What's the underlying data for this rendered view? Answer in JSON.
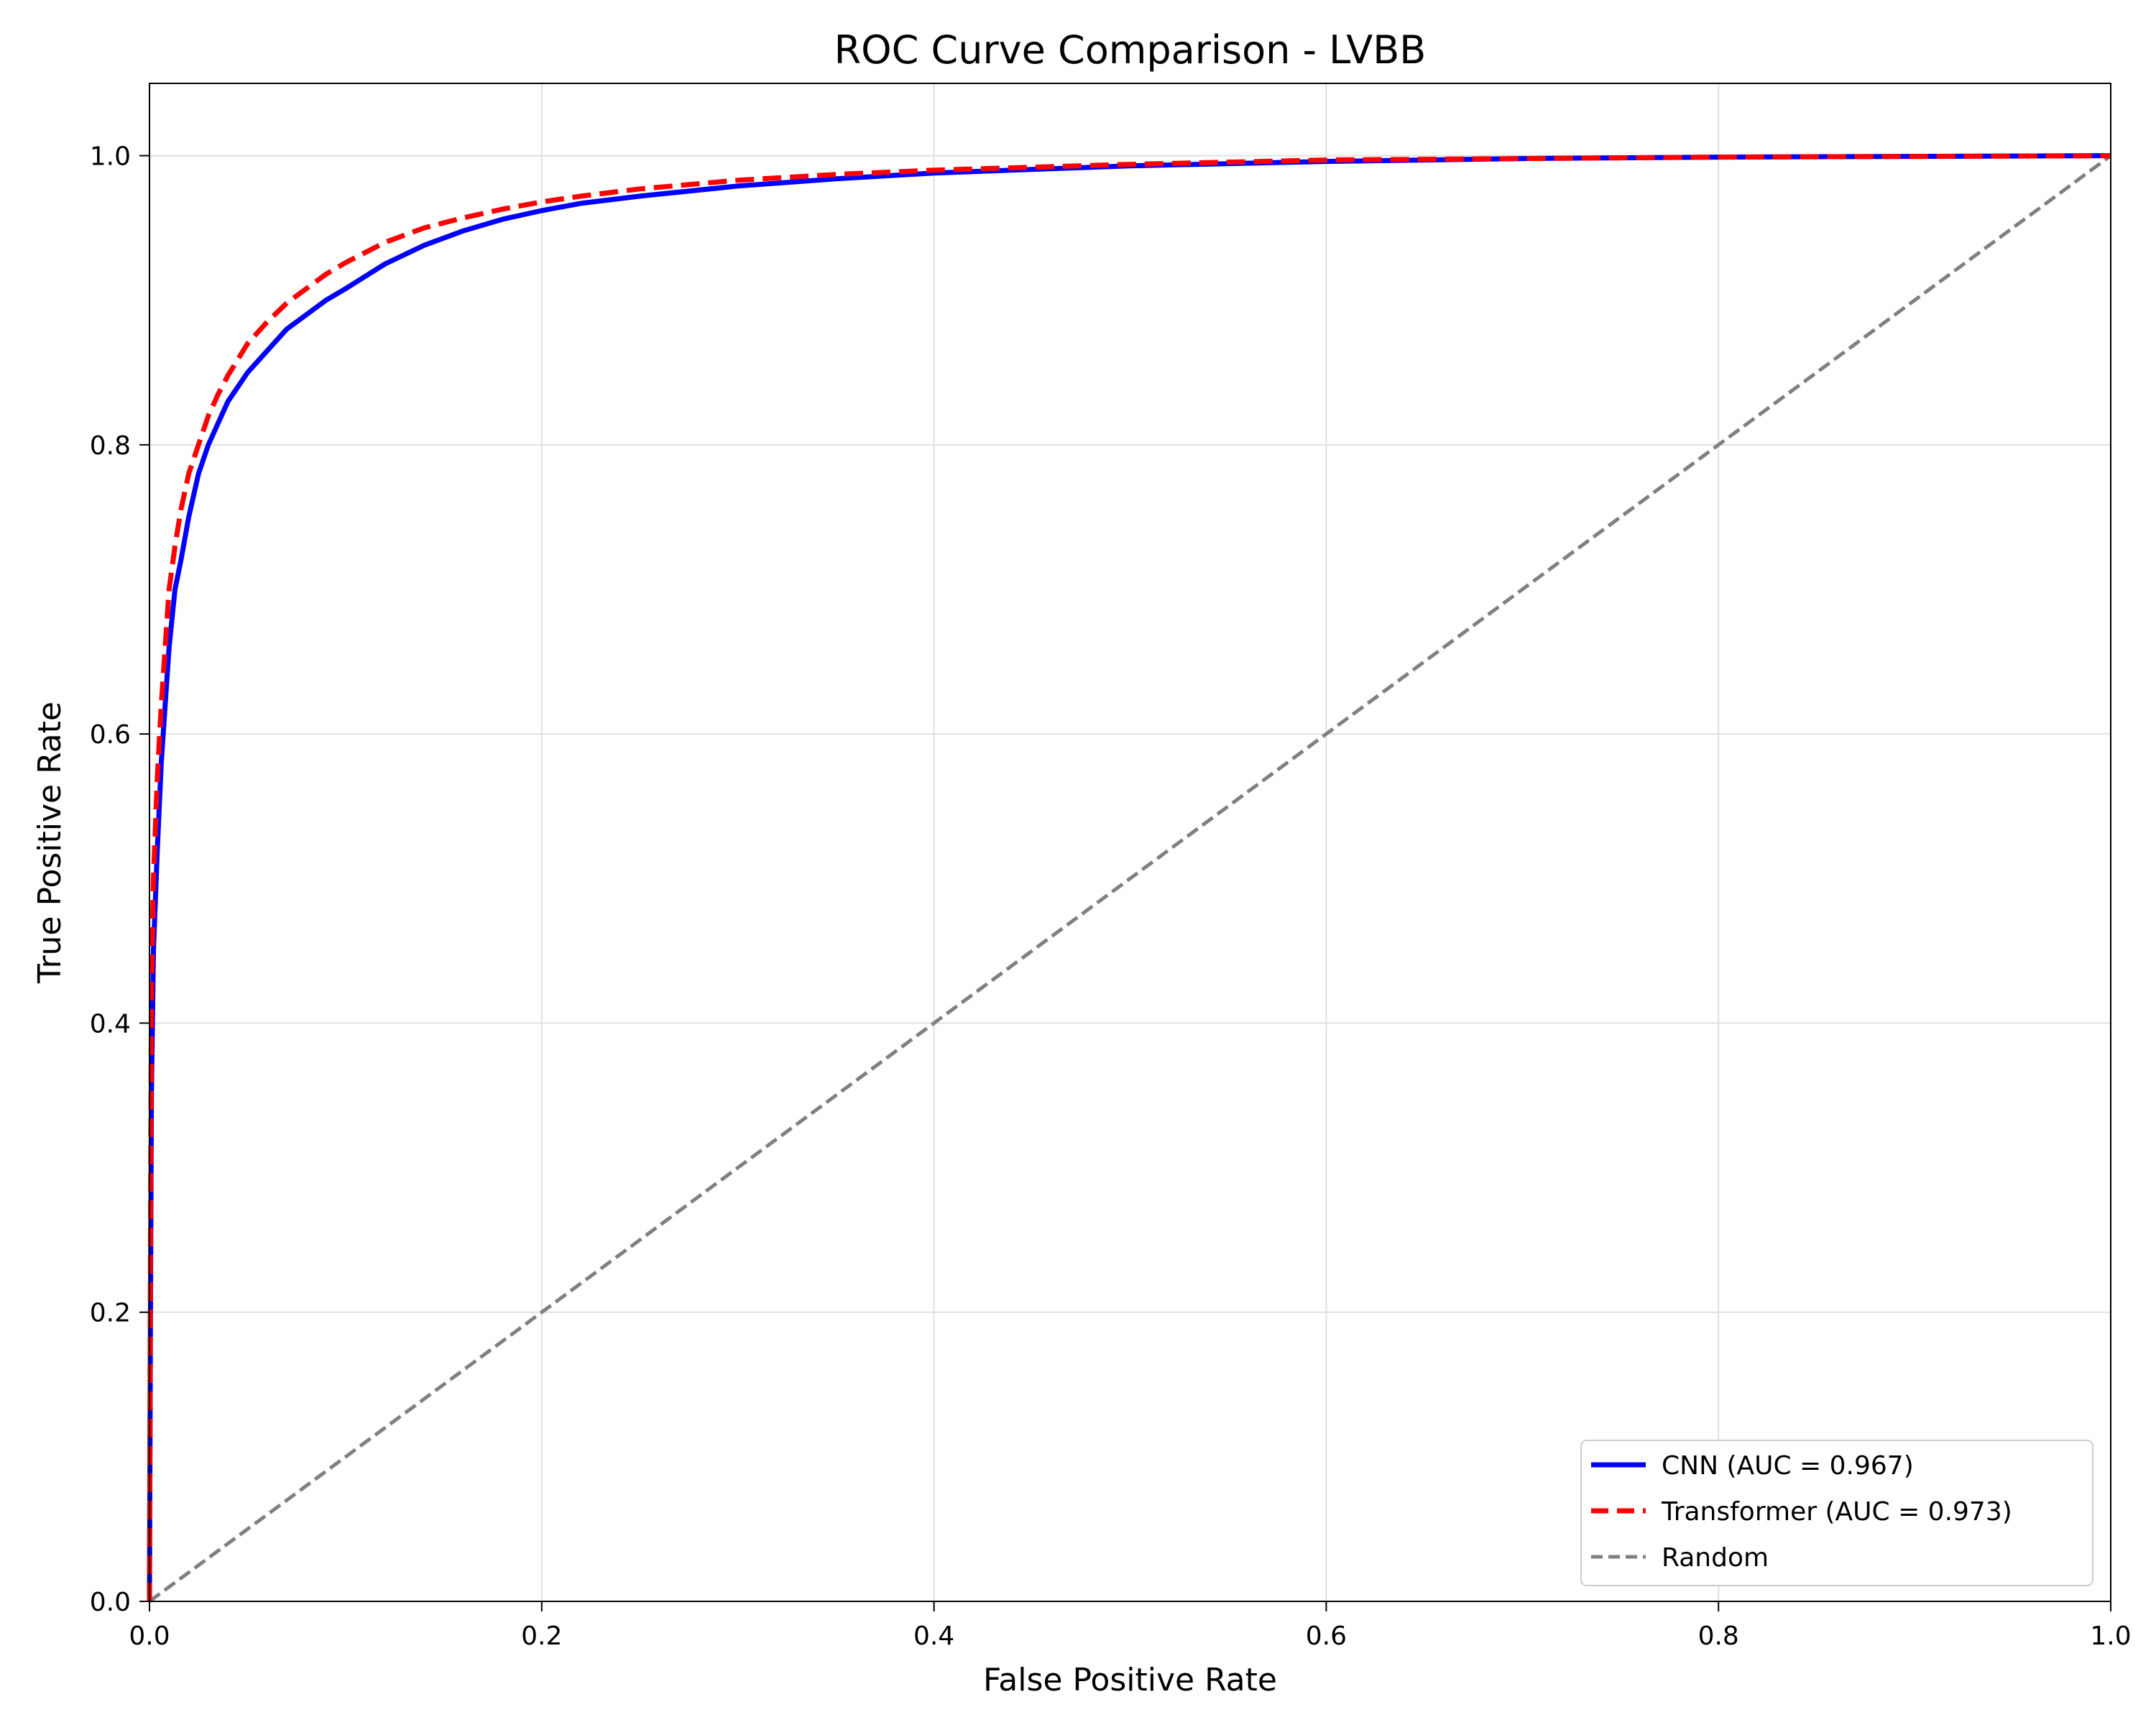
{
  "chart_data": {
    "type": "line",
    "title": "ROC Curve Comparison - LVBB",
    "xlabel": "False Positive Rate",
    "ylabel": "True Positive Rate",
    "xlim": [
      0.0,
      1.0
    ],
    "ylim": [
      0.0,
      1.05
    ],
    "xticks": [
      "0.0",
      "0.2",
      "0.4",
      "0.6",
      "0.8",
      "1.0"
    ],
    "yticks": [
      "0.0",
      "0.2",
      "0.4",
      "0.6",
      "0.8",
      "1.0"
    ],
    "grid": true,
    "legend_position": "lower-right",
    "series": [
      {
        "name": "CNN (AUC = 0.967)",
        "color": "#0000ff",
        "style": "solid",
        "x": [
          0.0,
          0.0005,
          0.001,
          0.002,
          0.004,
          0.006,
          0.008,
          0.01,
          0.013,
          0.016,
          0.02,
          0.025,
          0.03,
          0.035,
          0.04,
          0.05,
          0.06,
          0.07,
          0.08,
          0.09,
          0.1,
          0.12,
          0.14,
          0.16,
          0.18,
          0.2,
          0.22,
          0.25,
          0.3,
          0.35,
          0.4,
          0.5,
          0.6,
          0.7,
          0.8,
          0.9,
          1.0
        ],
        "y": [
          0.0,
          0.2,
          0.35,
          0.45,
          0.52,
          0.58,
          0.62,
          0.66,
          0.7,
          0.72,
          0.75,
          0.78,
          0.8,
          0.815,
          0.83,
          0.85,
          0.865,
          0.88,
          0.89,
          0.9,
          0.908,
          0.925,
          0.938,
          0.948,
          0.956,
          0.962,
          0.967,
          0.972,
          0.979,
          0.984,
          0.988,
          0.993,
          0.996,
          0.998,
          0.999,
          0.9995,
          1.0
        ]
      },
      {
        "name": "Transformer (AUC = 0.973)",
        "color": "#ff0000",
        "style": "dashed",
        "x": [
          0.0,
          0.0005,
          0.001,
          0.002,
          0.004,
          0.006,
          0.008,
          0.01,
          0.013,
          0.016,
          0.02,
          0.025,
          0.03,
          0.035,
          0.04,
          0.05,
          0.06,
          0.07,
          0.08,
          0.09,
          0.1,
          0.12,
          0.14,
          0.16,
          0.18,
          0.2,
          0.22,
          0.25,
          0.3,
          0.35,
          0.4,
          0.5,
          0.6,
          0.7,
          0.8,
          0.9,
          1.0
        ],
        "y": [
          0.0,
          0.25,
          0.42,
          0.5,
          0.57,
          0.62,
          0.66,
          0.7,
          0.73,
          0.755,
          0.78,
          0.8,
          0.82,
          0.835,
          0.848,
          0.87,
          0.885,
          0.898,
          0.908,
          0.918,
          0.926,
          0.94,
          0.95,
          0.957,
          0.963,
          0.968,
          0.972,
          0.977,
          0.983,
          0.987,
          0.99,
          0.994,
          0.997,
          0.998,
          0.999,
          0.9995,
          1.0
        ]
      },
      {
        "name": "Random",
        "color": "#808080",
        "style": "dashed",
        "x": [
          0.0,
          1.0
        ],
        "y": [
          0.0,
          1.0
        ]
      }
    ]
  }
}
